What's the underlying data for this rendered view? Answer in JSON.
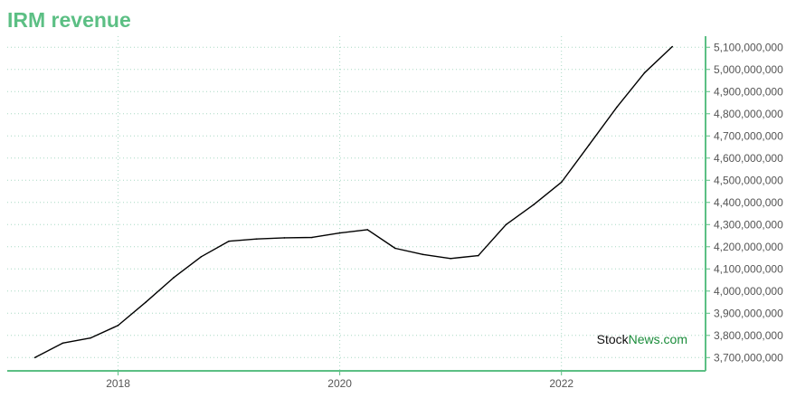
{
  "chart_data": {
    "type": "line",
    "title": "IRM revenue",
    "xlabel": "",
    "ylabel": "",
    "x_tick_labels": [
      "2018",
      "2020",
      "2022"
    ],
    "x_tick_values": [
      2018,
      2020,
      2022
    ],
    "x_range": [
      2017.0,
      2023.3
    ],
    "y_tick_labels": [
      "3,700,000,000",
      "3,800,000,000",
      "3,900,000,000",
      "4,000,000,000",
      "4,100,000,000",
      "4,200,000,000",
      "4,300,000,000",
      "4,400,000,000",
      "4,500,000,000",
      "4,600,000,000",
      "4,700,000,000",
      "4,800,000,000",
      "4,900,000,000",
      "5,000,000,000",
      "5,100,000,000"
    ],
    "y_tick_values": [
      3700000000,
      3800000000,
      3900000000,
      4000000000,
      4100000000,
      4200000000,
      4300000000,
      4400000000,
      4500000000,
      4600000000,
      4700000000,
      4800000000,
      4900000000,
      5000000000,
      5100000000
    ],
    "ylim": [
      3640000000,
      5150000000
    ],
    "y_axis_position": "right",
    "grid": true,
    "series": [
      {
        "color": "#000000",
        "points": [
          {
            "x": 2017.25,
            "y": 3700000000
          },
          {
            "x": 2017.5,
            "y": 3765000000
          },
          {
            "x": 2017.75,
            "y": 3788000000
          },
          {
            "x": 2018.0,
            "y": 3845000000
          },
          {
            "x": 2018.25,
            "y": 3950000000
          },
          {
            "x": 2018.5,
            "y": 4060000000
          },
          {
            "x": 2018.75,
            "y": 4155000000
          },
          {
            "x": 2019.0,
            "y": 4225000000
          },
          {
            "x": 2019.25,
            "y": 4235000000
          },
          {
            "x": 2019.5,
            "y": 4240000000
          },
          {
            "x": 2019.75,
            "y": 4242000000
          },
          {
            "x": 2020.0,
            "y": 4262000000
          },
          {
            "x": 2020.25,
            "y": 4277000000
          },
          {
            "x": 2020.5,
            "y": 4193000000
          },
          {
            "x": 2020.75,
            "y": 4165000000
          },
          {
            "x": 2021.0,
            "y": 4147000000
          },
          {
            "x": 2021.25,
            "y": 4160000000
          },
          {
            "x": 2021.5,
            "y": 4300000000
          },
          {
            "x": 2021.75,
            "y": 4390000000
          },
          {
            "x": 2022.0,
            "y": 4491000000
          },
          {
            "x": 2022.25,
            "y": 4660000000
          },
          {
            "x": 2022.5,
            "y": 4830000000
          },
          {
            "x": 2022.75,
            "y": 4985000000
          },
          {
            "x": 2023.0,
            "y": 5103000000
          }
        ]
      }
    ]
  },
  "watermark": {
    "part1": "Stock",
    "part2": "News",
    "part3": ".com"
  },
  "colors": {
    "title": "#5cbf84",
    "axis": "#5cbf84",
    "grid": "#a8d8c4",
    "line": "#000000",
    "watermark_dark": "#111111",
    "watermark_green": "#1a8c3a"
  }
}
